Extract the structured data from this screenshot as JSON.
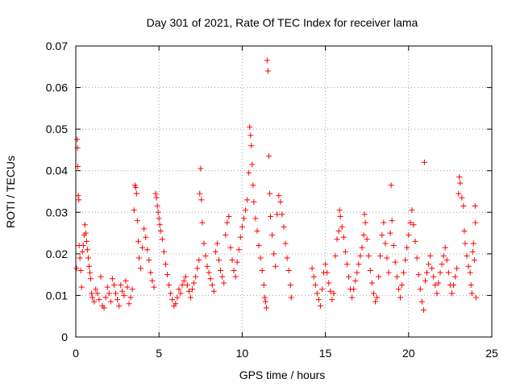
{
  "chart_data": {
    "type": "scatter",
    "title": "Day 301 of 2021, Rate Of TEC Index for receiver lama",
    "xlabel": "GPS time / hours",
    "ylabel": "ROTI / TECUs",
    "xlim": [
      0,
      25
    ],
    "ylim": [
      0,
      0.07
    ],
    "x_ticks": [
      0,
      5,
      10,
      15,
      20,
      25
    ],
    "x_tick_labels": [
      "0",
      "5",
      "10",
      "15",
      "20",
      "25"
    ],
    "y_ticks": [
      0,
      0.01,
      0.02,
      0.03,
      0.04,
      0.05,
      0.06,
      0.07
    ],
    "y_tick_labels": [
      "0",
      "0.01",
      "0.02",
      "0.03",
      "0.04",
      "0.05",
      "0.06",
      "0.07"
    ],
    "grid": true,
    "marker": "plus",
    "color": "#ff0000",
    "series": [
      {
        "points": [
          [
            0.05,
            0.0165
          ],
          [
            0.08,
            0.0475
          ],
          [
            0.1,
            0.0455
          ],
          [
            0.12,
            0.041
          ],
          [
            0.15,
            0.034
          ],
          [
            0.18,
            0.033
          ],
          [
            0.2,
            0.022
          ],
          [
            0.25,
            0.019
          ],
          [
            0.3,
            0.016
          ],
          [
            0.35,
            0.012
          ],
          [
            0.4,
            0.0205
          ],
          [
            0.45,
            0.022
          ],
          [
            0.5,
            0.0245
          ],
          [
            0.55,
            0.027
          ],
          [
            0.6,
            0.025
          ],
          [
            0.65,
            0.023
          ],
          [
            0.7,
            0.021
          ],
          [
            0.75,
            0.019
          ],
          [
            0.8,
            0.017
          ],
          [
            0.85,
            0.0155
          ],
          [
            0.9,
            0.014
          ],
          [
            0.95,
            0.0105
          ],
          [
            1.0,
            0.0095
          ],
          [
            1.1,
            0.0085
          ],
          [
            1.2,
            0.0115
          ],
          [
            1.3,
            0.0105
          ],
          [
            1.4,
            0.009
          ],
          [
            1.5,
            0.0145
          ],
          [
            1.6,
            0.0075
          ],
          [
            1.7,
            0.007
          ],
          [
            1.8,
            0.0095
          ],
          [
            1.9,
            0.012
          ],
          [
            2.0,
            0.0105
          ],
          [
            2.1,
            0.0085
          ],
          [
            2.2,
            0.014
          ],
          [
            2.3,
            0.0125
          ],
          [
            2.4,
            0.0105
          ],
          [
            2.5,
            0.009
          ],
          [
            2.6,
            0.0075
          ],
          [
            2.7,
            0.0125
          ],
          [
            2.8,
            0.011
          ],
          [
            2.9,
            0.01
          ],
          [
            3.0,
            0.0135
          ],
          [
            3.1,
            0.012
          ],
          [
            3.2,
            0.008
          ],
          [
            3.3,
            0.0095
          ],
          [
            3.4,
            0.0115
          ],
          [
            3.5,
            0.0305
          ],
          [
            3.55,
            0.0365
          ],
          [
            3.6,
            0.036
          ],
          [
            3.65,
            0.0345
          ],
          [
            3.7,
            0.028
          ],
          [
            3.75,
            0.023
          ],
          [
            3.8,
            0.019
          ],
          [
            3.9,
            0.0165
          ],
          [
            4.0,
            0.0215
          ],
          [
            4.1,
            0.026
          ],
          [
            4.2,
            0.024
          ],
          [
            4.3,
            0.021
          ],
          [
            4.4,
            0.0185
          ],
          [
            4.5,
            0.0155
          ],
          [
            4.6,
            0.0135
          ],
          [
            4.7,
            0.012
          ],
          [
            4.8,
            0.0345
          ],
          [
            4.85,
            0.0335
          ],
          [
            4.9,
            0.0315
          ],
          [
            4.95,
            0.03
          ],
          [
            5.0,
            0.0285
          ],
          [
            5.05,
            0.027
          ],
          [
            5.1,
            0.0255
          ],
          [
            5.2,
            0.0235
          ],
          [
            5.3,
            0.0205
          ],
          [
            5.4,
            0.0175
          ],
          [
            5.5,
            0.015
          ],
          [
            5.6,
            0.0125
          ],
          [
            5.7,
            0.0105
          ],
          [
            5.8,
            0.009
          ],
          [
            5.9,
            0.0075
          ],
          [
            6.0,
            0.008
          ],
          [
            6.1,
            0.0095
          ],
          [
            6.2,
            0.0115
          ],
          [
            6.3,
            0.0105
          ],
          [
            6.4,
            0.0125
          ],
          [
            6.5,
            0.0135
          ],
          [
            6.6,
            0.0145
          ],
          [
            6.7,
            0.0125
          ],
          [
            6.8,
            0.011
          ],
          [
            6.9,
            0.0095
          ],
          [
            7.0,
            0.0115
          ],
          [
            7.1,
            0.013
          ],
          [
            7.2,
            0.0145
          ],
          [
            7.3,
            0.0165
          ],
          [
            7.4,
            0.0185
          ],
          [
            7.45,
            0.0345
          ],
          [
            7.5,
            0.0405
          ],
          [
            7.55,
            0.033
          ],
          [
            7.6,
            0.0275
          ],
          [
            7.7,
            0.0225
          ],
          [
            7.8,
            0.0195
          ],
          [
            7.9,
            0.017
          ],
          [
            8.0,
            0.0155
          ],
          [
            8.1,
            0.014
          ],
          [
            8.2,
            0.0125
          ],
          [
            8.3,
            0.011
          ],
          [
            8.4,
            0.0205
          ],
          [
            8.5,
            0.0225
          ],
          [
            8.6,
            0.0185
          ],
          [
            8.7,
            0.016
          ],
          [
            8.8,
            0.0145
          ],
          [
            8.9,
            0.013
          ],
          [
            9.0,
            0.0245
          ],
          [
            9.1,
            0.0275
          ],
          [
            9.2,
            0.029
          ],
          [
            9.3,
            0.0215
          ],
          [
            9.4,
            0.0185
          ],
          [
            9.5,
            0.016
          ],
          [
            9.6,
            0.0145
          ],
          [
            9.7,
            0.018
          ],
          [
            9.8,
            0.021
          ],
          [
            9.9,
            0.024
          ],
          [
            10.0,
            0.0265
          ],
          [
            10.1,
            0.0285
          ],
          [
            10.2,
            0.0305
          ],
          [
            10.3,
            0.033
          ],
          [
            10.4,
            0.0395
          ],
          [
            10.45,
            0.0505
          ],
          [
            10.5,
            0.0485
          ],
          [
            10.55,
            0.046
          ],
          [
            10.6,
            0.0415
          ],
          [
            10.65,
            0.0365
          ],
          [
            10.7,
            0.0325
          ],
          [
            10.8,
            0.0285
          ],
          [
            10.9,
            0.0255
          ],
          [
            11.0,
            0.022
          ],
          [
            11.1,
            0.019
          ],
          [
            11.2,
            0.016
          ],
          [
            11.3,
            0.0125
          ],
          [
            11.35,
            0.0095
          ],
          [
            11.4,
            0.0085
          ],
          [
            11.45,
            0.007
          ],
          [
            11.5,
            0.0665
          ],
          [
            11.55,
            0.064
          ],
          [
            11.6,
            0.0435
          ],
          [
            11.65,
            0.0345
          ],
          [
            11.7,
            0.029
          ],
          [
            11.8,
            0.0245
          ],
          [
            11.9,
            0.02
          ],
          [
            12.0,
            0.017
          ],
          [
            12.1,
            0.0295
          ],
          [
            12.2,
            0.034
          ],
          [
            12.3,
            0.0325
          ],
          [
            12.4,
            0.0295
          ],
          [
            12.5,
            0.0265
          ],
          [
            12.6,
            0.0225
          ],
          [
            12.7,
            0.019
          ],
          [
            12.8,
            0.016
          ],
          [
            12.9,
            0.0125
          ],
          [
            12.95,
            0.0095
          ],
          [
            14.2,
            0.0165
          ],
          [
            14.3,
            0.0145
          ],
          [
            14.4,
            0.0125
          ],
          [
            14.5,
            0.0105
          ],
          [
            14.6,
            0.009
          ],
          [
            14.7,
            0.0075
          ],
          [
            14.8,
            0.0115
          ],
          [
            14.9,
            0.0155
          ],
          [
            15.0,
            0.0175
          ],
          [
            15.1,
            0.0155
          ],
          [
            15.2,
            0.013
          ],
          [
            15.3,
            0.011
          ],
          [
            15.4,
            0.009
          ],
          [
            15.5,
            0.0105
          ],
          [
            15.6,
            0.0195
          ],
          [
            15.7,
            0.0235
          ],
          [
            15.8,
            0.0255
          ],
          [
            15.85,
            0.0305
          ],
          [
            15.9,
            0.029
          ],
          [
            16.0,
            0.0265
          ],
          [
            16.1,
            0.024
          ],
          [
            16.2,
            0.0205
          ],
          [
            16.3,
            0.0175
          ],
          [
            16.4,
            0.0145
          ],
          [
            16.5,
            0.0115
          ],
          [
            16.6,
            0.0095
          ],
          [
            16.7,
            0.0115
          ],
          [
            16.8,
            0.0135
          ],
          [
            16.9,
            0.0155
          ],
          [
            17.0,
            0.0175
          ],
          [
            17.1,
            0.0195
          ],
          [
            17.2,
            0.0215
          ],
          [
            17.3,
            0.0245
          ],
          [
            17.35,
            0.0295
          ],
          [
            17.4,
            0.0275
          ],
          [
            17.5,
            0.0235
          ],
          [
            17.6,
            0.0195
          ],
          [
            17.7,
            0.016
          ],
          [
            17.8,
            0.013
          ],
          [
            17.9,
            0.0105
          ],
          [
            18.0,
            0.0085
          ],
          [
            18.1,
            0.0095
          ],
          [
            18.2,
            0.0145
          ],
          [
            18.3,
            0.0195
          ],
          [
            18.4,
            0.0245
          ],
          [
            18.5,
            0.0275
          ],
          [
            18.6,
            0.0225
          ],
          [
            18.7,
            0.019
          ],
          [
            18.8,
            0.0155
          ],
          [
            18.9,
            0.025
          ],
          [
            18.95,
            0.0365
          ],
          [
            19.0,
            0.028
          ],
          [
            19.1,
            0.022
          ],
          [
            19.2,
            0.018
          ],
          [
            19.3,
            0.0145
          ],
          [
            19.4,
            0.0115
          ],
          [
            19.5,
            0.0095
          ],
          [
            19.6,
            0.0125
          ],
          [
            19.7,
            0.0155
          ],
          [
            19.8,
            0.0185
          ],
          [
            19.9,
            0.0215
          ],
          [
            20.0,
            0.0245
          ],
          [
            20.1,
            0.0275
          ],
          [
            20.2,
            0.0305
          ],
          [
            20.3,
            0.027
          ],
          [
            20.4,
            0.023
          ],
          [
            20.5,
            0.019
          ],
          [
            20.6,
            0.015
          ],
          [
            20.7,
            0.0115
          ],
          [
            20.8,
            0.0085
          ],
          [
            20.9,
            0.0065
          ],
          [
            20.95,
            0.042
          ],
          [
            21.0,
            0.0135
          ],
          [
            21.1,
            0.0155
          ],
          [
            21.2,
            0.0175
          ],
          [
            21.3,
            0.0195
          ],
          [
            21.4,
            0.0165
          ],
          [
            21.5,
            0.0145
          ],
          [
            21.6,
            0.0125
          ],
          [
            21.7,
            0.0105
          ],
          [
            21.8,
            0.013
          ],
          [
            21.9,
            0.0155
          ],
          [
            22.0,
            0.0175
          ],
          [
            22.1,
            0.0195
          ],
          [
            22.2,
            0.0215
          ],
          [
            22.3,
            0.0185
          ],
          [
            22.4,
            0.0155
          ],
          [
            22.5,
            0.0125
          ],
          [
            22.6,
            0.0105
          ],
          [
            22.7,
            0.0125
          ],
          [
            22.8,
            0.0145
          ],
          [
            22.9,
            0.0165
          ],
          [
            23.0,
            0.0345
          ],
          [
            23.05,
            0.0385
          ],
          [
            23.1,
            0.037
          ],
          [
            23.2,
            0.0335
          ],
          [
            23.3,
            0.0315
          ],
          [
            23.35,
            0.0255
          ],
          [
            23.4,
            0.0225
          ],
          [
            23.5,
            0.0195
          ],
          [
            23.6,
            0.017
          ],
          [
            23.7,
            0.0155
          ],
          [
            23.75,
            0.0125
          ],
          [
            23.8,
            0.0105
          ],
          [
            23.85,
            0.0205
          ],
          [
            23.9,
            0.0225
          ],
          [
            23.95,
            0.0185
          ],
          [
            24.0,
            0.0315
          ],
          [
            24.02,
            0.0275
          ],
          [
            24.05,
            0.0095
          ]
        ]
      }
    ]
  }
}
